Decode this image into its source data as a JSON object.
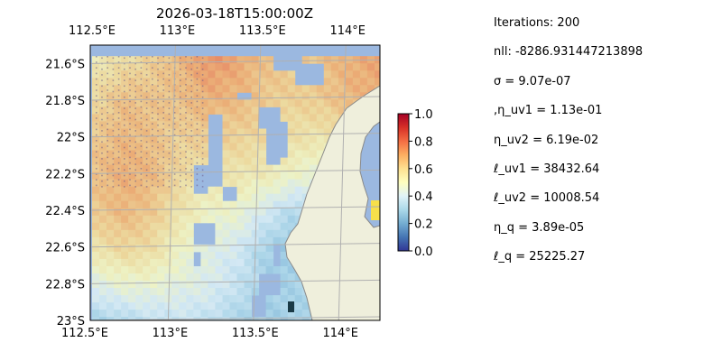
{
  "chart_data": {
    "type": "heatmap",
    "title": "2026-03-18T15:00:00Z",
    "x_ticks": [
      "112.5°E",
      "113°E",
      "113.5°E",
      "114°E"
    ],
    "y_ticks": [
      "21.6°S",
      "21.8°S",
      "22°S",
      "22.2°S",
      "22.4°S",
      "22.6°S",
      "22.8°S",
      "23°S"
    ],
    "x_tick_values": [
      112.5,
      113.0,
      113.5,
      114.0
    ],
    "y_tick_values": [
      -21.6,
      -21.8,
      -22.0,
      -22.2,
      -22.4,
      -22.6,
      -22.8,
      -23.0
    ],
    "colorbar": {
      "ticks": [
        "0.0",
        "0.2",
        "0.4",
        "0.6",
        "0.8",
        "1.0"
      ],
      "tick_values": [
        0.0,
        0.2,
        0.4,
        0.6,
        0.8,
        1.0
      ],
      "range": [
        0,
        1
      ],
      "colormap": "RdYlBu_r"
    },
    "extent": {
      "lon": [
        112.5,
        114.2
      ],
      "lat": [
        -23.0,
        -21.5
      ]
    },
    "grid": true,
    "field_description_values": [
      [
        0.55,
        0.58,
        0.62,
        0.68,
        0.75,
        0.72,
        0.66,
        0.64,
        0.66,
        0.7,
        0.72
      ],
      [
        0.6,
        0.66,
        0.65,
        0.66,
        0.7,
        0.68,
        0.64,
        0.62,
        0.64,
        0.68,
        0.7
      ],
      [
        0.64,
        0.68,
        0.66,
        0.62,
        0.64,
        0.62,
        0.6,
        0.58,
        0.56,
        0.6,
        0.62
      ],
      [
        0.66,
        0.7,
        0.68,
        0.6,
        0.56,
        0.56,
        0.54,
        0.5,
        0.46,
        0.48,
        0.5
      ],
      [
        0.64,
        0.68,
        0.64,
        0.56,
        0.5,
        0.48,
        0.4,
        0.32,
        0.36,
        0.4,
        0.44
      ],
      [
        0.56,
        0.6,
        0.58,
        0.5,
        0.44,
        0.4,
        0.3,
        0.26,
        0.3,
        0.34,
        0.38
      ],
      [
        0.42,
        0.46,
        0.46,
        0.44,
        0.42,
        0.36,
        0.3,
        0.3,
        0.32,
        0.34,
        0.36
      ],
      [
        0.28,
        0.3,
        0.34,
        0.36,
        0.34,
        0.3,
        0.28,
        0.3,
        0.3,
        0.3,
        0.3
      ]
    ]
  },
  "colors": {
    "ocean": "#9bb8e0",
    "land": "#efefdc",
    "coast": "#8a8a8a",
    "grid": "#b0b0b0"
  },
  "params": [
    "Iterations: 200",
    "nll: -8286.931447213898",
    "σ = 9.07e-07",
    ",η_uv1 = 1.13e-01",
    "η_uv2 = 6.19e-02",
    "ℓ_uv1 = 38432.64",
    "ℓ_uv2 = 10008.54",
    "η_q = 3.89e-05",
    "ℓ_q = 25225.27"
  ]
}
